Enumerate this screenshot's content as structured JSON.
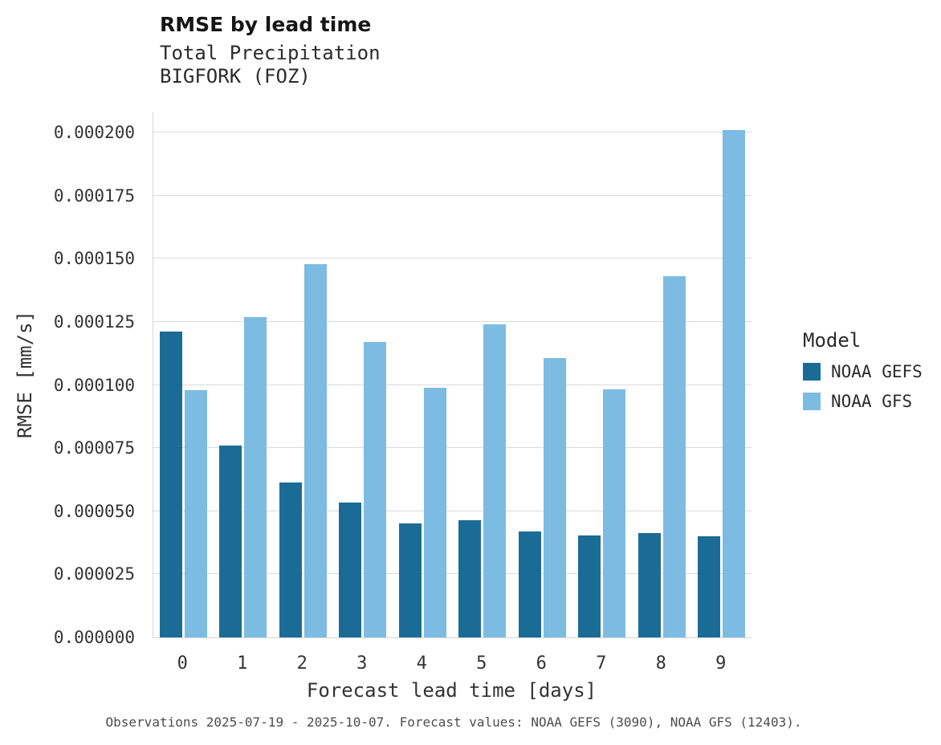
{
  "footer": "Observations 2025-07-19 - 2025-10-07. Forecast values: NOAA GEFS (3090), NOAA GFS (12403).",
  "chart_data": {
    "type": "bar",
    "title": "RMSE by lead time",
    "subtitle": [
      "Total Precipitation",
      "BIGFORK (FOZ)"
    ],
    "xlabel": "Forecast lead time [days]",
    "ylabel": "RMSE [mm/s]",
    "categories": [
      "0",
      "1",
      "2",
      "3",
      "4",
      "5",
      "6",
      "7",
      "8",
      "9"
    ],
    "series": [
      {
        "name": "NOAA GEFS",
        "color": "#1a6c96",
        "values": [
          0.000121,
          7.6e-05,
          6.15e-05,
          5.35e-05,
          4.5e-05,
          4.65e-05,
          4.2e-05,
          4.05e-05,
          4.13e-05,
          4.02e-05
        ]
      },
      {
        "name": "NOAA GFS",
        "color": "#7cbce2",
        "values": [
          9.78e-05,
          0.000127,
          0.000148,
          0.000117,
          9.9e-05,
          0.000124,
          0.0001105,
          9.83e-05,
          0.000143,
          0.000201
        ]
      }
    ],
    "ylim": [
      0,
      0.0002
    ],
    "yticks": [
      "0.000000",
      "0.000025",
      "0.000050",
      "0.000075",
      "0.000100",
      "0.000125",
      "0.000150",
      "0.000175",
      "0.000200"
    ],
    "grid": true,
    "legend_title": "Model",
    "legend_position": "right"
  }
}
